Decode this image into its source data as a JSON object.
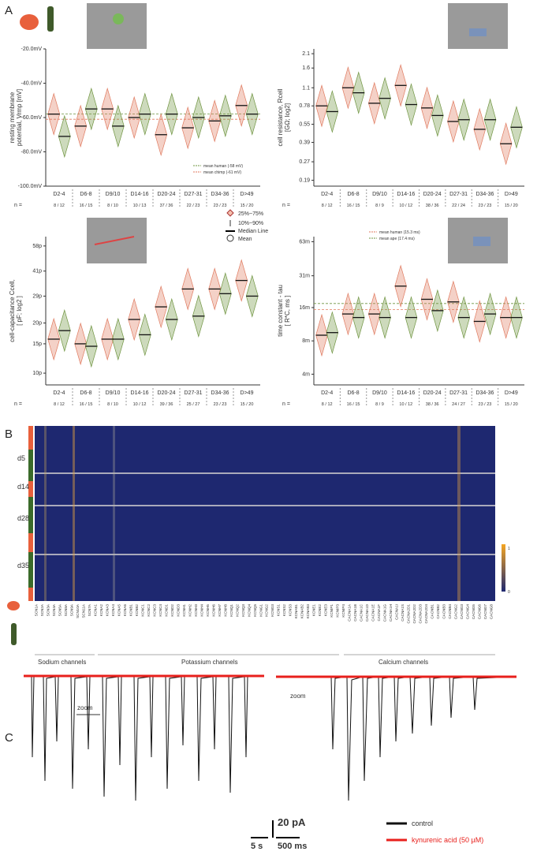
{
  "panels": {
    "A": "A",
    "B": "B",
    "C": "C"
  },
  "box_legend": [
    "25%~75%",
    "10%~90%",
    "Median Line",
    "Mean"
  ],
  "chart_data": [
    {
      "type": "violin",
      "ylabel": [
        "resting membrane",
        "potential, Vrmp  [mV]"
      ],
      "n_label": "n =",
      "categories": [
        "D2-4",
        "D6-8",
        "D9/10",
        "D14-16",
        "D20-24",
        "D27-31",
        "D34-36",
        "D>49"
      ],
      "n": [
        "8 / 12",
        "16 / 15",
        "8 / 10",
        "10 / 13",
        "37 / 36",
        "22 / 23",
        "23 / 23",
        "15 / 20"
      ],
      "series": [
        {
          "color": "#e07a5f",
          "values": [
            -58,
            -65,
            -55,
            -60,
            -70,
            -66,
            -62,
            -53
          ]
        },
        {
          "color": "#6f9440",
          "values": [
            -71,
            -55,
            -65,
            -58,
            -58,
            -60,
            -59,
            -58
          ]
        }
      ],
      "ref_lines": [
        {
          "name": "mean human (-58 mV)",
          "value": -58,
          "color": "#6f9440"
        },
        {
          "name": "mean chimp (-61 mV)",
          "value": -61,
          "color": "#e07a5f"
        }
      ],
      "log_scale": false,
      "ylim": [
        -100,
        -20
      ],
      "yticks": [
        {
          "value": -20,
          "label": "-20.0mV"
        },
        {
          "value": -40,
          "label": "-40.0mV"
        },
        {
          "value": -60,
          "label": "-60.0mV"
        },
        {
          "value": -80,
          "label": "-80.0mV"
        },
        {
          "value": -100,
          "label": "-100.0mV"
        }
      ]
    },
    {
      "type": "violin",
      "ylabel": [
        "cell resistance, Rcell",
        "[GΩ; log2]"
      ],
      "n_label": "n =",
      "categories": [
        "D2-4",
        "D6-8",
        "D9/10",
        "D14-16",
        "D20-24",
        "D27-31",
        "D34-36",
        "D>49"
      ],
      "n": [
        "8 / 12",
        "16 / 15",
        "8 / 9",
        "10 / 12",
        "38 / 36",
        "22 / 24",
        "23 / 23",
        "15 / 20"
      ],
      "series": [
        {
          "color": "#e07a5f",
          "values": [
            0.78,
            1.1,
            0.82,
            1.15,
            0.75,
            0.58,
            0.5,
            0.38
          ]
        },
        {
          "color": "#6f9440",
          "values": [
            0.7,
            1.0,
            0.9,
            0.8,
            0.65,
            0.6,
            0.6,
            0.52
          ]
        }
      ],
      "log_scale": true,
      "ylim": [
        0.17,
        2.3
      ],
      "yticks": [
        2.1,
        1.6,
        1.1,
        0.78,
        0.55,
        0.39,
        0.27,
        0.19
      ]
    },
    {
      "type": "violin",
      "ylabel": [
        "cell-capacitance Ccell,",
        "[ pF; log2 ]"
      ],
      "n_label": "n =",
      "categories": [
        "D2-4",
        "D6-8",
        "D9/10",
        "D14-16",
        "D20-24",
        "D27-31",
        "D34-36",
        "D>49"
      ],
      "n": [
        "8 / 12",
        "16 / 15",
        "8 / 10",
        "10 / 12",
        "39 / 36",
        "25 / 27",
        "23 / 23",
        "15 / 20"
      ],
      "series": [
        {
          "color": "#e07a5f",
          "values": [
            16,
            15,
            16,
            21,
            25,
            32,
            32,
            36
          ]
        },
        {
          "color": "#6f9440",
          "values": [
            18,
            14.5,
            16,
            17,
            21,
            22,
            30,
            29
          ]
        }
      ],
      "log_scale": true,
      "ylim": [
        8.5,
        66
      ],
      "yticks": [
        {
          "value": 10,
          "label": "10p"
        },
        {
          "value": 15,
          "label": "15p"
        },
        {
          "value": 20,
          "label": "20p"
        },
        {
          "value": 29,
          "label": "29p"
        },
        {
          "value": 41,
          "label": "41p"
        },
        {
          "value": 58,
          "label": "58p"
        }
      ]
    },
    {
      "type": "violin",
      "ylabel": [
        "time constant - tau",
        "[ R*C, ms ]"
      ],
      "n_label": "n =",
      "categories": [
        "D2-4",
        "D6-8",
        "D9/10",
        "D14-16",
        "D20-24",
        "D27-31",
        "D34-36",
        "D>49"
      ],
      "n": [
        "8 / 12",
        "16 / 15",
        "8 / 9",
        "10 / 12",
        "38 / 36",
        "24 / 27",
        "23 / 23",
        "15 / 20"
      ],
      "series": [
        {
          "color": "#e07a5f",
          "values": [
            9,
            14,
            14,
            25,
            19,
            18,
            12,
            13
          ]
        },
        {
          "color": "#6f9440",
          "values": [
            9.5,
            13,
            13,
            13,
            15,
            13,
            14,
            13
          ]
        }
      ],
      "ref_lines": [
        {
          "name": "mean human (15.3 ms)",
          "value": 15.3,
          "color": "#e07a5f"
        },
        {
          "name": "mean  ape   (17.4 ms)",
          "value": 17.4,
          "color": "#6f9440"
        }
      ],
      "log_scale": true,
      "ylim": [
        3.2,
        70
      ],
      "yticks": [
        {
          "value": 4,
          "label": "4m"
        },
        {
          "value": 8,
          "label": "8m"
        },
        {
          "value": 16,
          "label": "16m"
        },
        {
          "value": 31,
          "label": "31m"
        },
        {
          "value": 63,
          "label": "63m"
        }
      ]
    }
  ],
  "heatmap": {
    "rows": [
      "d5",
      "d14",
      "d28",
      "d35"
    ],
    "genes": [
      "SCN1A",
      "SCN2A",
      "SCN3A",
      "SCN4A",
      "SCN5A",
      "SCN8A",
      "SCN9A",
      "SCN10A",
      "SCN11A",
      "SCN7A",
      "KCNA1",
      "KCNA2",
      "KCNA3",
      "KCNA4",
      "KCNA5",
      "KCNA6",
      "KCNB1",
      "KCNB2",
      "KCNC1",
      "KCNC2",
      "KCNC3",
      "KCNC4",
      "KCND1",
      "KCND2",
      "KCND3",
      "KCNH1",
      "KCNH2",
      "KCNH3",
      "KCNH4",
      "KCNH5",
      "KCNH6",
      "KCNH7",
      "KCNH8",
      "KCNQ1",
      "KCNQ2",
      "KCNQ3",
      "KCNQ4",
      "KCNQ5",
      "KCNG1",
      "KCNG2",
      "KCNG3",
      "KCNS1",
      "KCNS2",
      "KCNS3",
      "KCNAB1",
      "KCNAB2",
      "KCNAB3",
      "KCNE1",
      "KCNE2",
      "KCNE3",
      "KCNIP1",
      "KCNIP3",
      "KCNIP4",
      "CACNA1A",
      "CACNA1B",
      "CACNA1C",
      "CACNA1D",
      "CACNA1E",
      "CACNA1F",
      "CACNA1G",
      "CACNA1H",
      "CACNA1I",
      "CACNA1S",
      "CACNA2D1",
      "CACNA2D2",
      "CACNA2D3",
      "CACNA2D4",
      "CACNB1",
      "CACNB2",
      "CACNB3",
      "CACNB4",
      "CACNG2",
      "CACNG3",
      "CACNG4",
      "CACNG5",
      "CACNG6",
      "CACNG7",
      "CACNG8"
    ],
    "groups": [
      "Sodium channels",
      "Potassium channels",
      "Calcium channels"
    ],
    "colorbar": [
      1,
      0
    ]
  },
  "traces": {
    "zoom_left": "zoom",
    "zoom_right": "zoom",
    "scale_current": "20 pA",
    "scale_time_left": "5 s",
    "scale_time_right": "500 ms",
    "legend": [
      "control",
      "kynurenic acid (50 µM)"
    ]
  }
}
